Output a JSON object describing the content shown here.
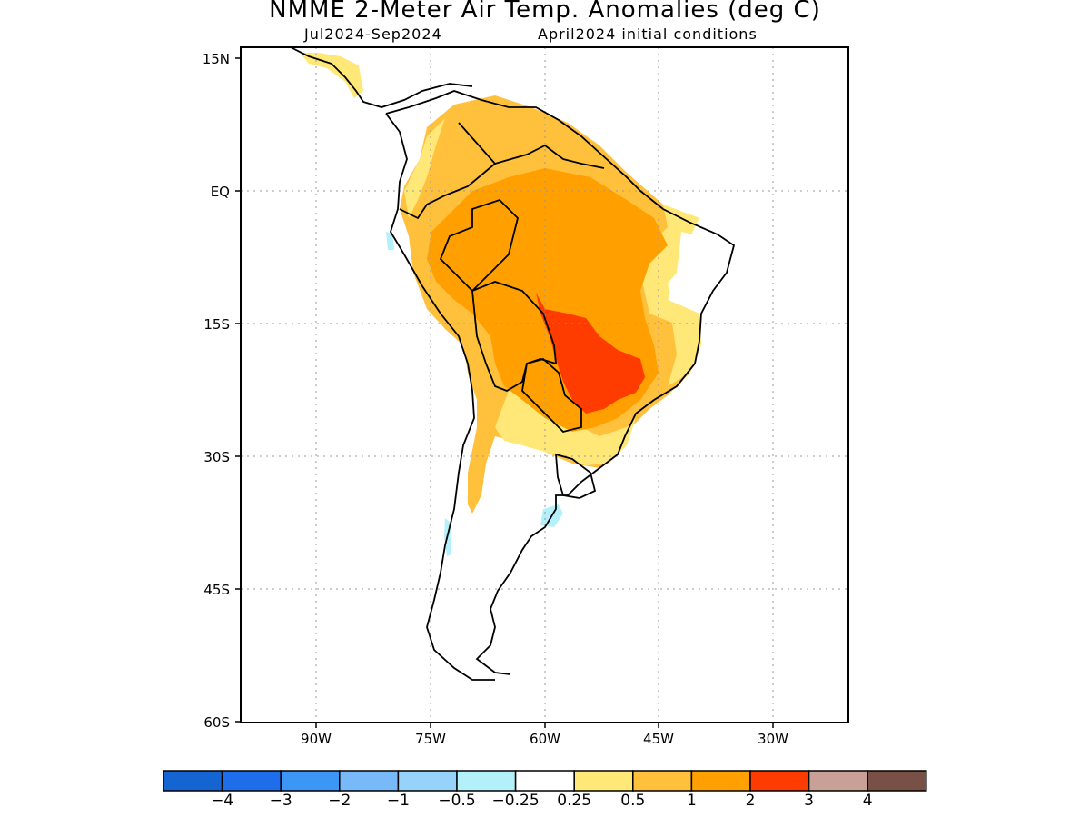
{
  "title": "NMME 2-Meter Air Temp. Anomalies (deg C)",
  "subtitle_left": "Jul2024-Sep2024",
  "subtitle_right": "April2024 initial conditions",
  "lat_labels": [
    "15N",
    "EQ",
    "15S",
    "30S",
    "45S",
    "60S"
  ],
  "lon_labels": [
    "90W",
    "75W",
    "60W",
    "45W",
    "30W"
  ],
  "colorbar": {
    "colors": [
      "#1464d2",
      "#1e6eeb",
      "#3c96f5",
      "#78b9fa",
      "#96d2fa",
      "#b4f0fa",
      "#ffffff",
      "#ffe878",
      "#ffc03c",
      "#ffa000",
      "#ff3c00",
      "#c8a096",
      "#785046"
    ],
    "labels": [
      "−4",
      "−3",
      "−2",
      "−1",
      "−0.5",
      "−0.25",
      "0.25",
      "0.5",
      "1",
      "2",
      "3",
      "4"
    ]
  },
  "legend_colors": {
    "anomaly_0_25_to_0_5": "#ffe878",
    "anomaly_0_5_to_1": "#ffc03c",
    "anomaly_1_to_2": "#ffa000",
    "anomaly_2_to_3": "#ff3c00",
    "anomaly_neg_0_5_to_neg_0_25": "#b4f0fa"
  }
}
